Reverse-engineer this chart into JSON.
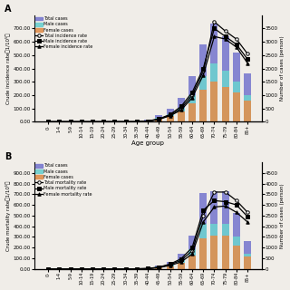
{
  "age_groups": [
    "0-",
    "1-4",
    "5-9",
    "10-14",
    "15-19",
    "20-24",
    "25-29",
    "30-34",
    "35-39",
    "40-44",
    "45-49",
    "50-54",
    "55-59",
    "60-64",
    "65-69",
    "70-74",
    "75-79",
    "80-84",
    "85+"
  ],
  "panel_A": {
    "title": "A",
    "ylabel_left": "Crude incidence rate（1/10⁵）",
    "ylabel_right": "Number of cases (person)",
    "xlabel": "Age group",
    "ylim_left": [
      0,
      800
    ],
    "ylim_right": [
      0,
      4000
    ],
    "yticks_left": [
      0,
      100,
      200,
      300,
      400,
      500,
      600,
      700
    ],
    "ytick_labels_left": [
      "0.00",
      "100.00",
      "200.00",
      "300.00",
      "400.00",
      "500.00",
      "600.00",
      "700.00"
    ],
    "yticks_right": [
      0,
      500,
      1000,
      1500,
      2000,
      2500,
      3000,
      3500
    ],
    "total_cases": [
      5,
      10,
      8,
      6,
      7,
      8,
      10,
      12,
      20,
      80,
      260,
      500,
      900,
      1700,
      2900,
      3700,
      3200,
      2600,
      1800
    ],
    "male_cases": [
      3,
      5,
      4,
      3,
      4,
      4,
      5,
      6,
      11,
      45,
      145,
      290,
      520,
      1000,
      1700,
      2200,
      1900,
      1500,
      1000
    ],
    "female_cases": [
      2,
      5,
      4,
      3,
      3,
      4,
      5,
      6,
      9,
      35,
      115,
      210,
      380,
      700,
      1200,
      1500,
      1300,
      1100,
      800
    ],
    "total_rate": [
      0.5,
      0.5,
      0.5,
      0.5,
      0.5,
      0.5,
      0.5,
      0.5,
      1,
      5,
      20,
      50,
      100,
      200,
      380,
      750,
      680,
      620,
      510
    ],
    "male_rate": [
      0.5,
      0.5,
      0.5,
      0.5,
      0.5,
      0.5,
      0.5,
      0.5,
      1,
      6,
      22,
      55,
      115,
      220,
      400,
      700,
      640,
      580,
      470
    ],
    "female_rate": [
      0.5,
      0.5,
      0.5,
      0.5,
      0.5,
      0.5,
      0.5,
      0.5,
      0.8,
      4,
      18,
      45,
      88,
      180,
      350,
      640,
      620,
      560,
      440
    ],
    "legend_labels_bar": [
      "Total cases",
      "Male cases",
      "Female cases"
    ],
    "legend_labels_line": [
      "Total incidence rate",
      "Male incidence rate",
      "Female incidence rate"
    ],
    "bar_total_color": "#7b7bcf",
    "bar_male_color": "#6dcfcf",
    "bar_female_color": "#e09050",
    "bg_color": "#f0ede8"
  },
  "panel_B": {
    "title": "B",
    "ylabel_left": "Crude mortality rate（1/10⁵）",
    "ylabel_right": "Number of cases (person)",
    "xlabel": "",
    "ylim_left": [
      0,
      1000
    ],
    "ylim_right": [
      0,
      5000
    ],
    "yticks_left": [
      0,
      100,
      200,
      300,
      400,
      500,
      600,
      700,
      800,
      900
    ],
    "ytick_labels_left": [
      "0.00",
      "100.00",
      "200.00",
      "300.00",
      "400.00",
      "500.00",
      "600.00",
      "700.00",
      "800.00",
      "900.00"
    ],
    "yticks_right": [
      0,
      500,
      1000,
      1500,
      2000,
      2500,
      3000,
      3500,
      4000,
      4500
    ],
    "total_cases": [
      2,
      3,
      2,
      2,
      2,
      3,
      3,
      5,
      10,
      30,
      170,
      310,
      730,
      1560,
      3550,
      3650,
      3650,
      2600,
      1300
    ],
    "male_cases": [
      1,
      2,
      1,
      1,
      1,
      2,
      2,
      3,
      6,
      18,
      95,
      185,
      430,
      940,
      2100,
      2100,
      2100,
      1500,
      700
    ],
    "female_cases": [
      1,
      1,
      1,
      1,
      1,
      1,
      1,
      2,
      4,
      12,
      75,
      125,
      300,
      620,
      1450,
      1550,
      1550,
      1100,
      600
    ],
    "total_rate": [
      0.5,
      0.5,
      0.5,
      0.5,
      0.5,
      0.5,
      0.5,
      0.5,
      1,
      3,
      15,
      40,
      80,
      170,
      500,
      720,
      720,
      640,
      530
    ],
    "male_rate": [
      0.5,
      0.5,
      0.5,
      0.5,
      0.5,
      0.5,
      0.5,
      0.5,
      1,
      4,
      17,
      45,
      95,
      200,
      550,
      640,
      630,
      600,
      490
    ],
    "female_rate": [
      0.5,
      0.5,
      0.5,
      0.5,
      0.5,
      0.5,
      0.5,
      0.5,
      0.8,
      2,
      12,
      32,
      65,
      140,
      440,
      580,
      590,
      530,
      440
    ],
    "legend_labels_bar": [
      "Total cases",
      "Male cases",
      "Female cases"
    ],
    "legend_labels_line": [
      "Total mortality rate",
      "Male mortality rate",
      "Female mortality rate"
    ],
    "bar_total_color": "#7b7bcf",
    "bar_male_color": "#6dcfcf",
    "bar_female_color": "#e09050",
    "bg_color": "#f0ede8"
  }
}
